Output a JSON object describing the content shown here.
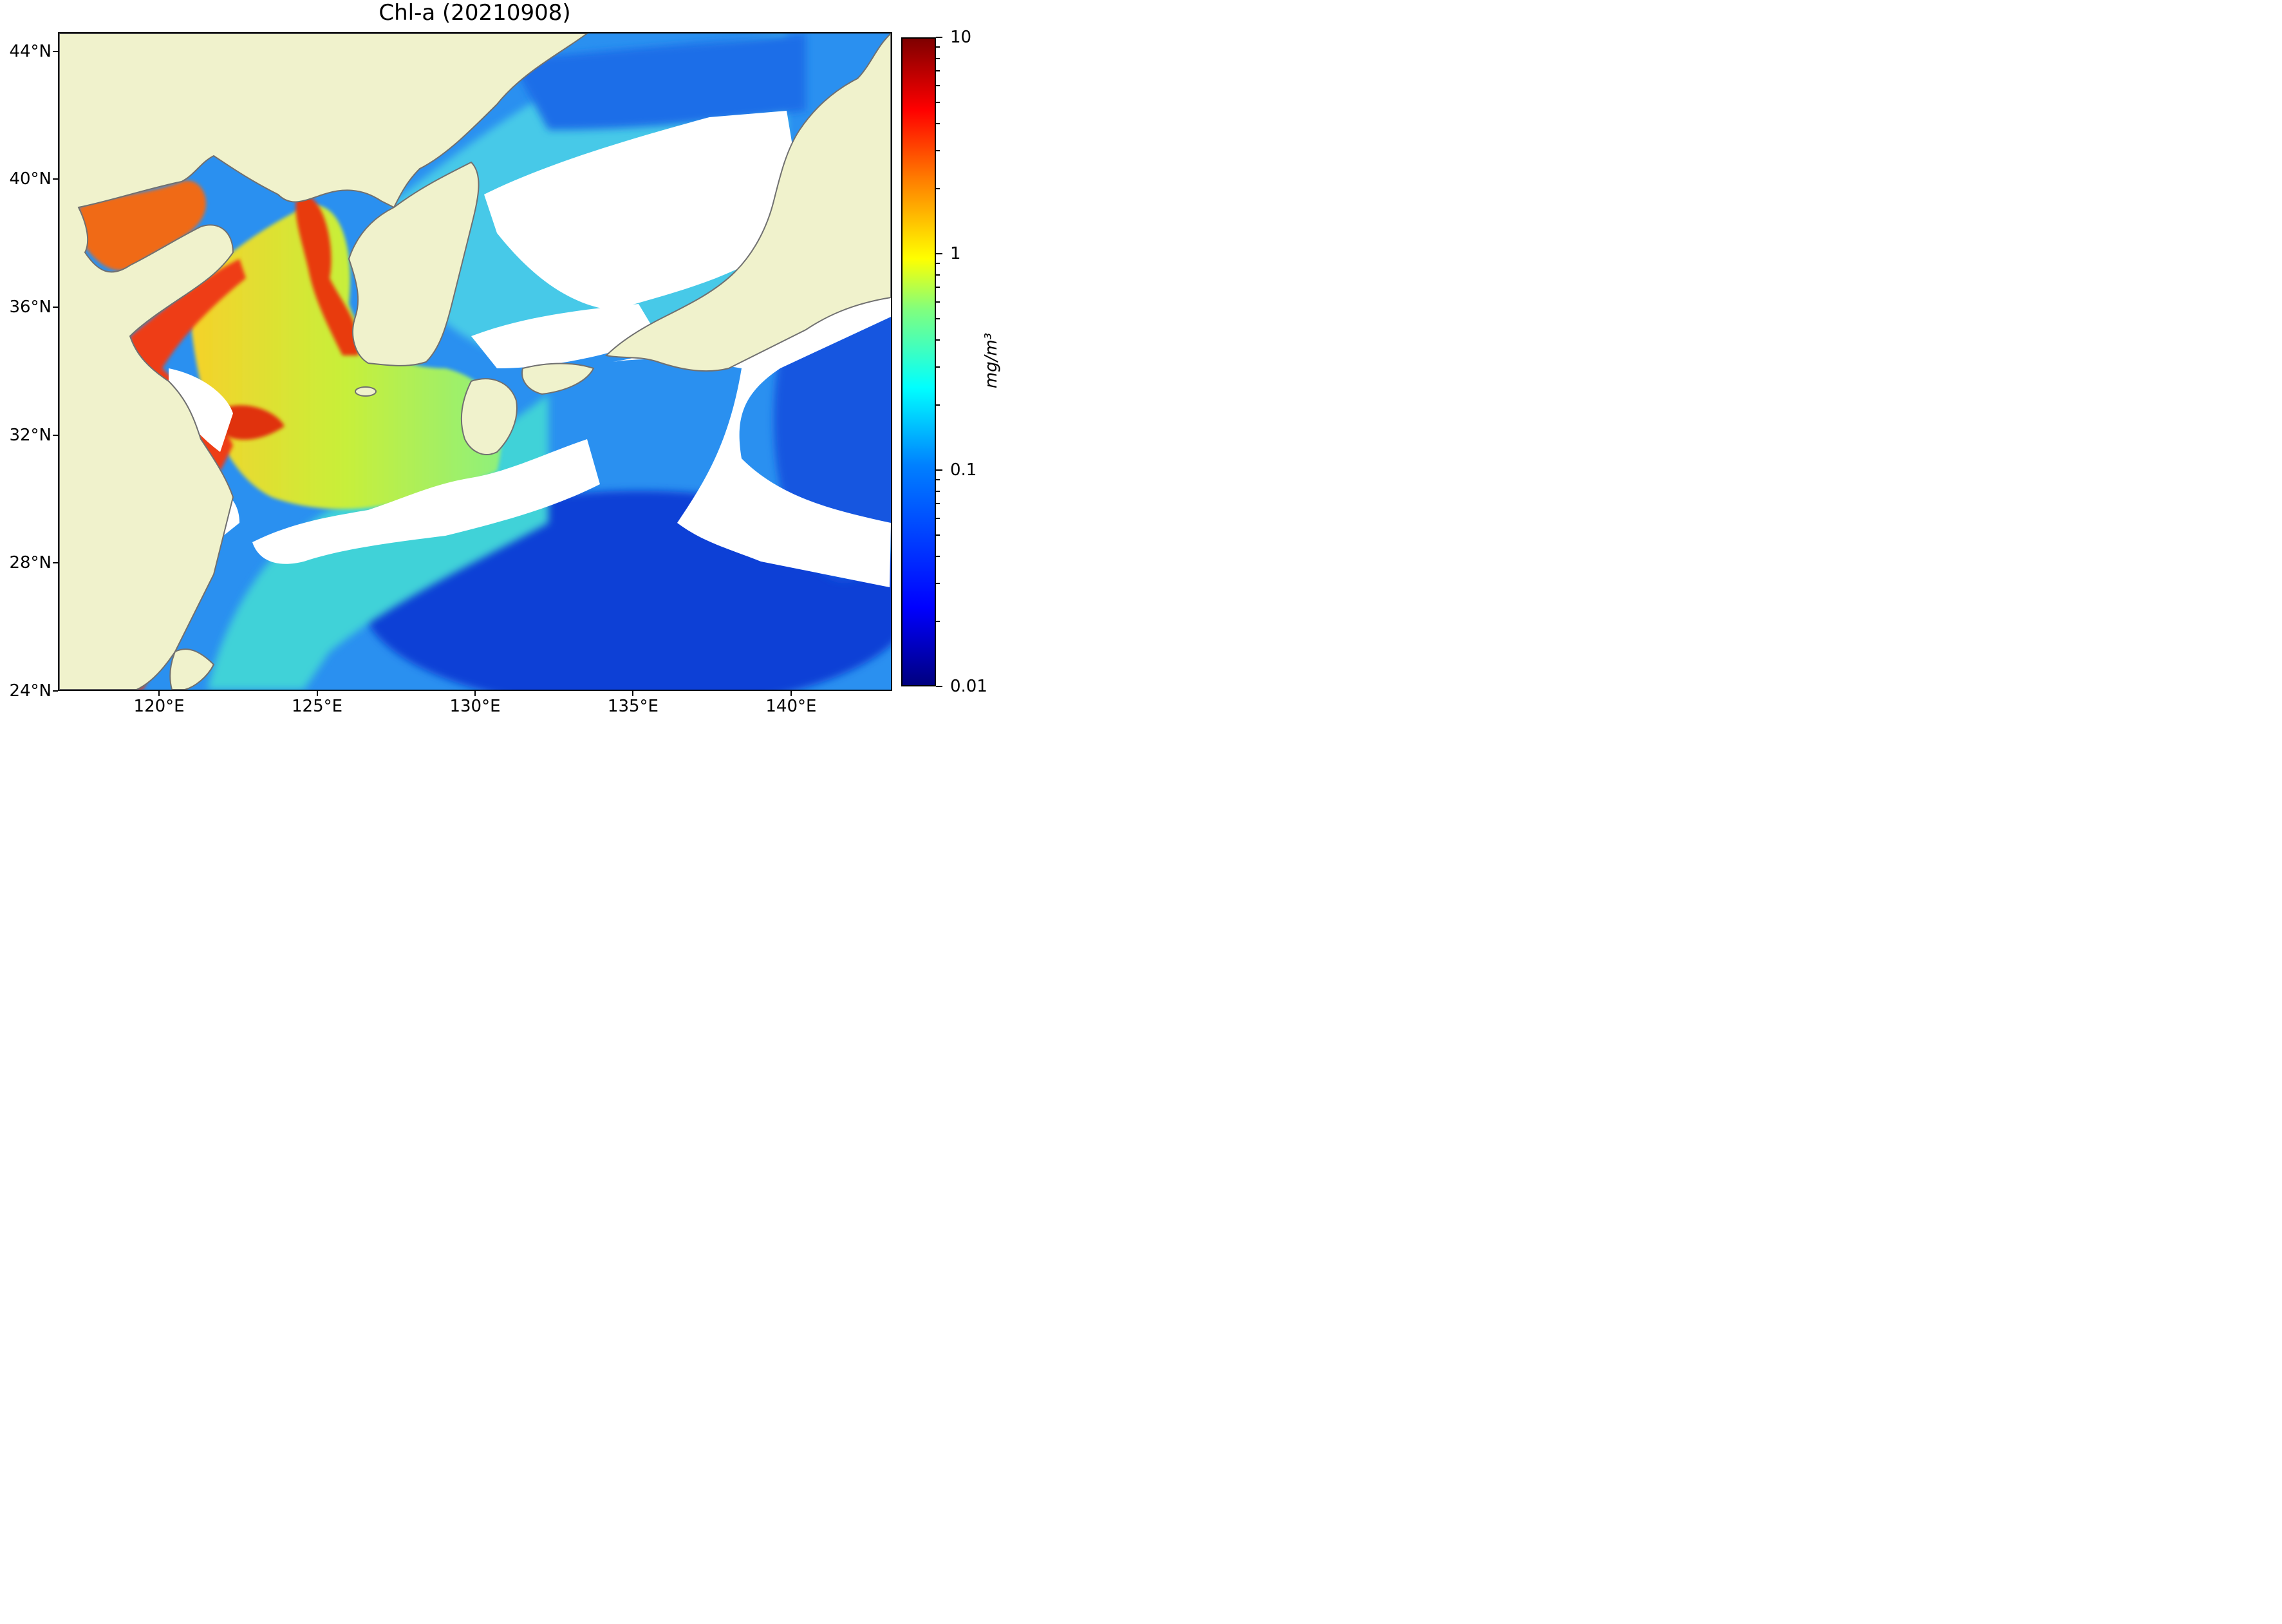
{
  "title": "Chl-a (20210908)",
  "map": {
    "lon_range": [
      116.8,
      143.2
    ],
    "lat_range": [
      24,
      44.6
    ],
    "land_color": "#f0f2cc",
    "coastline_color": "#707070",
    "no_data_color": "#ffffff",
    "lat_ticks": [
      {
        "value": 44,
        "label": "44°N"
      },
      {
        "value": 40,
        "label": "40°N"
      },
      {
        "value": 36,
        "label": "36°N"
      },
      {
        "value": 32,
        "label": "32°N"
      },
      {
        "value": 28,
        "label": "28°N"
      },
      {
        "value": 24,
        "label": "24°N"
      }
    ],
    "lon_ticks": [
      {
        "value": 120,
        "label": "120°E"
      },
      {
        "value": 125,
        "label": "125°E"
      },
      {
        "value": 130,
        "label": "130°E"
      },
      {
        "value": 135,
        "label": "135°E"
      },
      {
        "value": 140,
        "label": "140°E"
      }
    ]
  },
  "colorbar": {
    "colormap": "jet",
    "scale": "log",
    "min": 0.01,
    "max": 10,
    "ticks": [
      {
        "value": 10,
        "label": "10"
      },
      {
        "value": 1,
        "label": "1"
      },
      {
        "value": 0.1,
        "label": "0.1"
      },
      {
        "value": 0.01,
        "label": "0.01"
      }
    ],
    "unit": "mg/m³"
  }
}
